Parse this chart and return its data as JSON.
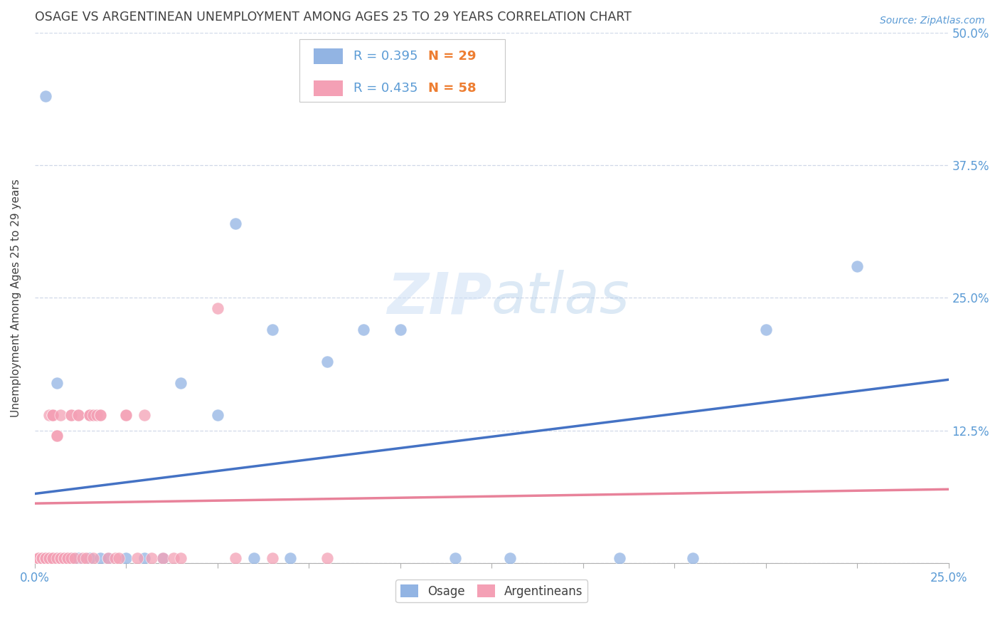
{
  "title": "OSAGE VS ARGENTINEAN UNEMPLOYMENT AMONG AGES 25 TO 29 YEARS CORRELATION CHART",
  "source_text": "Source: ZipAtlas.com",
  "ylabel": "Unemployment Among Ages 25 to 29 years",
  "xlim": [
    0.0,
    0.25
  ],
  "ylim": [
    0.0,
    0.5
  ],
  "yticks": [
    0.0,
    0.125,
    0.25,
    0.375,
    0.5
  ],
  "yticklabels": [
    "",
    "12.5%",
    "25.0%",
    "37.5%",
    "50.0%"
  ],
  "xtick_vals": [
    0.0,
    0.025,
    0.05,
    0.075,
    0.1,
    0.125,
    0.15,
    0.175,
    0.2,
    0.225,
    0.25
  ],
  "osage_r": 0.395,
  "osage_n": 29,
  "argent_r": 0.435,
  "argent_n": 58,
  "osage_color": "#92b4e3",
  "argent_color": "#f4a0b5",
  "osage_line_color": "#4472c4",
  "argent_line_color": "#e8829a",
  "argent_line_style": "--",
  "title_color": "#404040",
  "tick_color": "#5b9bd5",
  "legend_r_color": "#5b9bd5",
  "legend_n_color": "#ed7d31",
  "watermark_color": "#cddff5",
  "grid_color": "#d0d8e8",
  "osage_x": [
    0.002,
    0.003,
    0.004,
    0.006,
    0.006,
    0.008,
    0.01,
    0.012,
    0.015,
    0.018,
    0.02,
    0.025,
    0.03,
    0.035,
    0.04,
    0.05,
    0.055,
    0.06,
    0.065,
    0.07,
    0.08,
    0.09,
    0.1,
    0.115,
    0.13,
    0.16,
    0.18,
    0.2,
    0.225
  ],
  "osage_y": [
    0.005,
    0.44,
    0.005,
    0.005,
    0.17,
    0.005,
    0.005,
    0.005,
    0.005,
    0.005,
    0.005,
    0.005,
    0.005,
    0.005,
    0.17,
    0.14,
    0.32,
    0.005,
    0.22,
    0.005,
    0.19,
    0.22,
    0.22,
    0.005,
    0.005,
    0.005,
    0.005,
    0.22,
    0.28
  ],
  "argent_x": [
    0.001,
    0.001,
    0.001,
    0.002,
    0.002,
    0.002,
    0.003,
    0.003,
    0.003,
    0.004,
    0.004,
    0.004,
    0.005,
    0.005,
    0.005,
    0.005,
    0.005,
    0.006,
    0.006,
    0.006,
    0.007,
    0.007,
    0.007,
    0.008,
    0.008,
    0.009,
    0.009,
    0.01,
    0.01,
    0.01,
    0.011,
    0.012,
    0.012,
    0.013,
    0.014,
    0.015,
    0.015,
    0.015,
    0.016,
    0.016,
    0.017,
    0.018,
    0.018,
    0.02,
    0.022,
    0.023,
    0.025,
    0.025,
    0.028,
    0.03,
    0.032,
    0.035,
    0.038,
    0.04,
    0.05,
    0.055,
    0.065,
    0.08
  ],
  "argent_y": [
    0.005,
    0.005,
    0.005,
    0.005,
    0.005,
    0.005,
    0.005,
    0.005,
    0.005,
    0.005,
    0.005,
    0.14,
    0.14,
    0.14,
    0.14,
    0.005,
    0.005,
    0.12,
    0.12,
    0.005,
    0.005,
    0.005,
    0.14,
    0.005,
    0.005,
    0.005,
    0.005,
    0.005,
    0.14,
    0.14,
    0.005,
    0.14,
    0.14,
    0.005,
    0.005,
    0.14,
    0.14,
    0.14,
    0.14,
    0.005,
    0.14,
    0.14,
    0.14,
    0.005,
    0.005,
    0.005,
    0.14,
    0.14,
    0.005,
    0.14,
    0.005,
    0.005,
    0.005,
    0.005,
    0.24,
    0.005,
    0.005,
    0.005
  ]
}
